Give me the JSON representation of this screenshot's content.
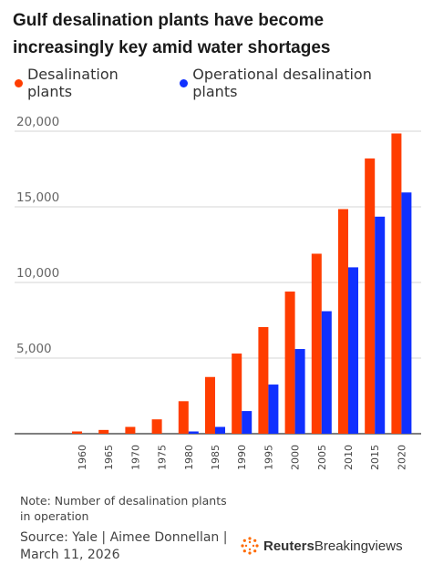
{
  "title": "Gulf desalination plants have become increasingly key amid water shortages",
  "legend": [
    {
      "label": "Desalination plants",
      "color": "#ff3d00"
    },
    {
      "label": "Operational desalination plants",
      "color": "#1030ff"
    }
  ],
  "chart_data": {
    "type": "bar",
    "categories": [
      "1960",
      "1965",
      "1970",
      "1975",
      "1980",
      "1985",
      "1990",
      "1995",
      "2000",
      "2005",
      "2010",
      "2015",
      "2020"
    ],
    "series": [
      {
        "name": "Desalination plants",
        "color": "#ff3d00",
        "values": [
          150,
          250,
          450,
          950,
          2150,
          3750,
          5300,
          7050,
          9400,
          11900,
          14850,
          18200,
          19850
        ]
      },
      {
        "name": "Operational desalination plants",
        "color": "#1030ff",
        "values": [
          0,
          0,
          0,
          0,
          150,
          450,
          1500,
          3250,
          5600,
          8100,
          11000,
          14350,
          15950
        ]
      }
    ],
    "yticks": [
      "20,000",
      "15,000",
      "10,000",
      "5,000"
    ],
    "ytick_values": [
      20000,
      15000,
      10000,
      5000
    ],
    "ylim": [
      0,
      20000
    ]
  },
  "note": "Note: Number of desalination plants in operation",
  "source": "Source: Yale | Aimee Donnellan | March 11, 2026",
  "brand": {
    "bold": "Reuters",
    "rest": "Breakingviews",
    "icon": "reuters-logo-icon"
  }
}
